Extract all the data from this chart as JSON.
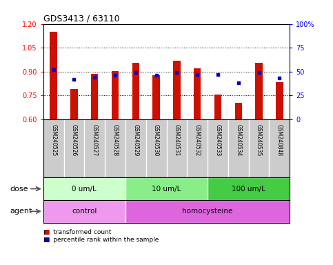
{
  "title": "GDS3413 / 63110",
  "samples": [
    "GSM240525",
    "GSM240526",
    "GSM240527",
    "GSM240528",
    "GSM240529",
    "GSM240530",
    "GSM240531",
    "GSM240532",
    "GSM240533",
    "GSM240534",
    "GSM240535",
    "GSM240848"
  ],
  "transformed_count": [
    1.15,
    0.79,
    0.885,
    0.905,
    0.955,
    0.875,
    0.97,
    0.92,
    0.755,
    0.705,
    0.955,
    0.835
  ],
  "percentile_rank": [
    52,
    42,
    44,
    46,
    49,
    46,
    49,
    47,
    47,
    38,
    49,
    43
  ],
  "ylim_left": [
    0.6,
    1.2
  ],
  "ylim_right": [
    0,
    100
  ],
  "yticks_left": [
    0.6,
    0.75,
    0.9,
    1.05,
    1.2
  ],
  "yticks_right": [
    0,
    25,
    50,
    75,
    100
  ],
  "ytick_labels_right": [
    "0",
    "25",
    "50",
    "75",
    "100%"
  ],
  "bar_color": "#cc1100",
  "dot_color": "#0000cc",
  "dose_groups": [
    {
      "label": "0 um/L",
      "start": 0,
      "end": 4,
      "color": "#ccffcc"
    },
    {
      "label": "10 um/L",
      "start": 4,
      "end": 8,
      "color": "#88ee88"
    },
    {
      "label": "100 um/L",
      "start": 8,
      "end": 12,
      "color": "#44cc44"
    }
  ],
  "agent_groups": [
    {
      "label": "control",
      "start": 0,
      "end": 4,
      "color": "#ee99ee"
    },
    {
      "label": "homocysteine",
      "start": 4,
      "end": 12,
      "color": "#dd66dd"
    }
  ],
  "dose_label": "dose",
  "agent_label": "agent",
  "legend_bar_label": "transformed count",
  "legend_dot_label": "percentile rank within the sample",
  "tick_area_bg": "#cccccc",
  "baseline": 0.6
}
